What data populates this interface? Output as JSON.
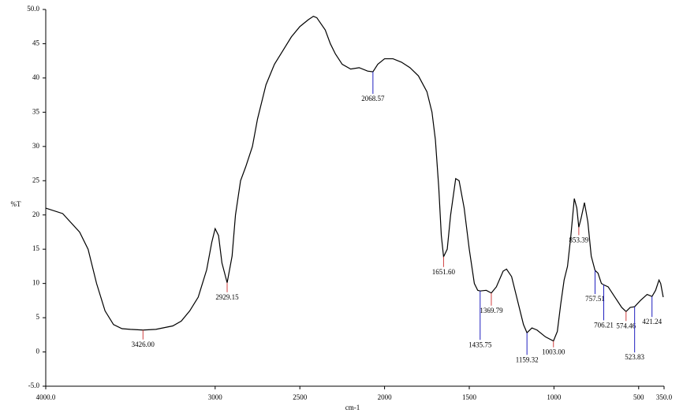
{
  "chart_data": {
    "type": "line",
    "xlabel": "cm-1",
    "ylabel": "%T",
    "xlim": [
      4000,
      350
    ],
    "ylim": [
      -5,
      50
    ],
    "xticks": [
      {
        "value": 4000,
        "label": "4000.0"
      },
      3000,
      2500,
      2000,
      1500,
      1000,
      500,
      {
        "value": 350,
        "label": "350.0"
      }
    ],
    "yticks": [
      {
        "value": 50,
        "label": "50.0"
      },
      45,
      40,
      35,
      30,
      25,
      20,
      15,
      10,
      5,
      0,
      {
        "value": -5,
        "label": "-5.0"
      }
    ],
    "color": "#000000",
    "x": [
      4000,
      3900,
      3800,
      3750,
      3700,
      3650,
      3600,
      3550,
      3500,
      3426,
      3350,
      3250,
      3200,
      3150,
      3100,
      3050,
      3020,
      3000,
      2980,
      2960,
      2929.15,
      2900,
      2880,
      2850,
      2820,
      2780,
      2750,
      2700,
      2650,
      2600,
      2550,
      2500,
      2450,
      2420,
      2400,
      2350,
      2320,
      2290,
      2250,
      2200,
      2150,
      2100,
      2068.57,
      2040,
      2000,
      1950,
      1900,
      1850,
      1800,
      1750,
      1720,
      1700,
      1680,
      1665,
      1651.6,
      1630,
      1610,
      1580,
      1560,
      1530,
      1500,
      1470,
      1450,
      1435.75,
      1400,
      1369.79,
      1340,
      1300,
      1280,
      1250,
      1220,
      1180,
      1159.32,
      1130,
      1100,
      1050,
      1003,
      980,
      960,
      940,
      920,
      900,
      880,
      865,
      853.39,
      840,
      820,
      800,
      780,
      757.51,
      740,
      720,
      706.21,
      680,
      640,
      600,
      574.46,
      550,
      523.83,
      490,
      450,
      421.24,
      400,
      380,
      370,
      355
    ],
    "values": [
      21.0,
      20.2,
      17.5,
      15,
      10,
      6,
      4,
      3.4,
      3.3,
      3.2,
      3.3,
      3.8,
      4.5,
      6,
      8,
      12,
      16,
      18,
      17,
      13,
      10.1,
      14,
      20,
      25,
      27,
      30,
      34,
      39,
      42,
      44,
      46,
      47.5,
      48.5,
      49,
      48.8,
      47,
      45,
      43.5,
      42,
      41.3,
      41.5,
      41,
      40.9,
      42,
      42.8,
      42.8,
      42.3,
      41.5,
      40.3,
      38,
      35,
      31,
      24,
      17,
      13.9,
      15,
      20,
      25.3,
      25,
      21,
      15,
      10,
      9,
      8.9,
      9,
      8.6,
      9.5,
      11.8,
      12.1,
      11,
      8,
      4,
      2.8,
      3.5,
      3.2,
      2.2,
      1.6,
      3,
      7,
      10.5,
      12.5,
      17,
      22.4,
      21,
      18.2,
      19.5,
      21.8,
      19,
      14,
      11.9,
      11.5,
      10,
      9.8,
      9.5,
      8,
      6.5,
      5.9,
      6.5,
      6.6,
      7.5,
      8.4,
      8.1,
      9,
      10.5,
      10,
      8
    ],
    "peaks": [
      {
        "x": 3426,
        "label": "3426.00",
        "y": 3.2,
        "color": "#d04040"
      },
      {
        "x": 2929.15,
        "label": "2929.15",
        "y": 10.1,
        "color": "#d04040"
      },
      {
        "x": 2068.57,
        "label": "2068.57",
        "y": 40.9,
        "color": "#2020c0"
      },
      {
        "x": 1651.6,
        "label": "1651.60",
        "y": 13.9,
        "color": "#d04040"
      },
      {
        "x": 1435.75,
        "label": "1435.75",
        "y": 8.9,
        "color": "#2020c0"
      },
      {
        "x": 1369.79,
        "label": "1369.79",
        "y": 8.6,
        "color": "#d04040"
      },
      {
        "x": 1159.32,
        "label": "1159.32",
        "y": 2.8,
        "color": "#2020c0"
      },
      {
        "x": 1003,
        "label": "1003.00",
        "y": 1.6,
        "color": "#d04040"
      },
      {
        "x": 853.39,
        "label": "853.39",
        "y": 18.2,
        "color": "#d04040"
      },
      {
        "x": 757.51,
        "label": "757.51",
        "y": 11.9,
        "color": "#2020c0"
      },
      {
        "x": 706.21,
        "label": "706.21",
        "y": 9.8,
        "color": "#2020c0"
      },
      {
        "x": 574.46,
        "label": "574.46",
        "y": 5.9,
        "color": "#d04040"
      },
      {
        "x": 523.83,
        "label": "523.83",
        "y": 6.6,
        "color": "#2020c0"
      },
      {
        "x": 421.24,
        "label": "421.24",
        "y": 8.1,
        "color": "#2020c0"
      }
    ]
  }
}
